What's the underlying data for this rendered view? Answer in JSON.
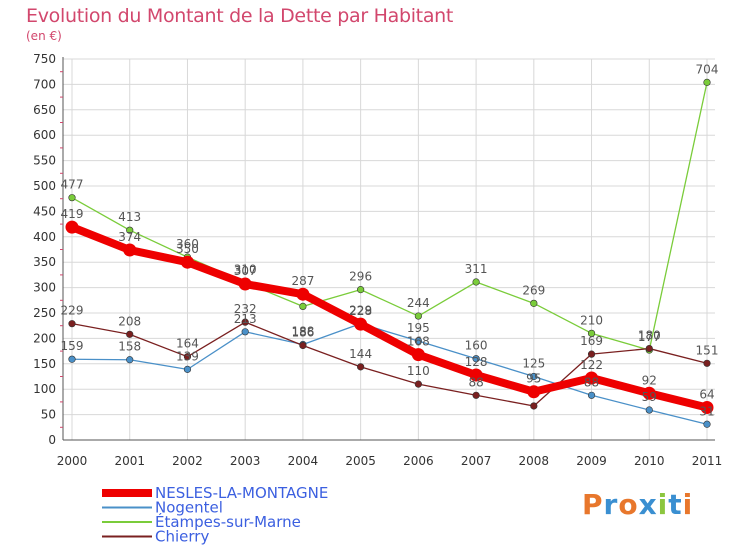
{
  "header": {
    "title": "Evolution du Montant de la Dette par Habitant",
    "subtitle": "(en €)"
  },
  "logo": {
    "letters": [
      "P",
      "r",
      "o",
      "x",
      "i",
      "t",
      "i"
    ],
    "colors": [
      "#e8772c",
      "#3a8fd1",
      "#e8772c",
      "#3a8fd1",
      "#8cc63f",
      "#3a8fd1",
      "#e8772c"
    ]
  },
  "chart_data": {
    "type": "line",
    "title": "Evolution du Montant de la Dette par Habitant",
    "subtitle": "(en €)",
    "x": [
      "2000",
      "2001",
      "2002",
      "2003",
      "2004",
      "2005",
      "2006",
      "2007",
      "2008",
      "2009",
      "2010",
      "2011"
    ],
    "ylim": [
      0,
      750
    ],
    "yticks": [
      0,
      50,
      100,
      150,
      200,
      250,
      300,
      350,
      400,
      450,
      500,
      550,
      600,
      650,
      700,
      750
    ],
    "grid": true,
    "legend_position": "bottom-left",
    "series": [
      {
        "name": "NESLES-LA-MONTAGNE",
        "color": "#ee0000",
        "values": [
          419,
          374,
          350,
          307,
          287,
          228,
          168,
          128,
          95,
          122,
          92,
          64
        ]
      },
      {
        "name": "Nogentel",
        "color": "#4a90c8",
        "values": [
          159,
          158,
          139,
          213,
          188,
          229,
          195,
          160,
          125,
          88,
          59,
          31
        ]
      },
      {
        "name": "Étampes-sur-Marne",
        "color": "#7acc3a",
        "values": [
          477,
          413,
          360,
          310,
          263,
          296,
          244,
          311,
          269,
          210,
          177,
          704
        ]
      },
      {
        "name": "Chierry",
        "color": "#7a2020",
        "values": [
          229,
          208,
          164,
          232,
          186,
          144,
          110,
          88,
          67,
          169,
          180,
          151
        ]
      }
    ],
    "data_labels": [
      [
        "419",
        "374",
        "350",
        "307",
        "287",
        "228",
        "168",
        "128",
        "95",
        "122",
        "92",
        "64"
      ],
      [
        "159",
        "158",
        "139",
        "213",
        "188",
        "229",
        "195",
        "160",
        "125",
        "88",
        "59",
        "31"
      ],
      [
        "477",
        "413",
        "360",
        "310",
        "",
        "296",
        "244",
        "311",
        "269",
        "210",
        "177",
        "704"
      ],
      [
        "229",
        "208",
        "164",
        "232",
        "186",
        "144",
        "110",
        "88",
        "",
        "169",
        "180",
        "151"
      ]
    ]
  }
}
